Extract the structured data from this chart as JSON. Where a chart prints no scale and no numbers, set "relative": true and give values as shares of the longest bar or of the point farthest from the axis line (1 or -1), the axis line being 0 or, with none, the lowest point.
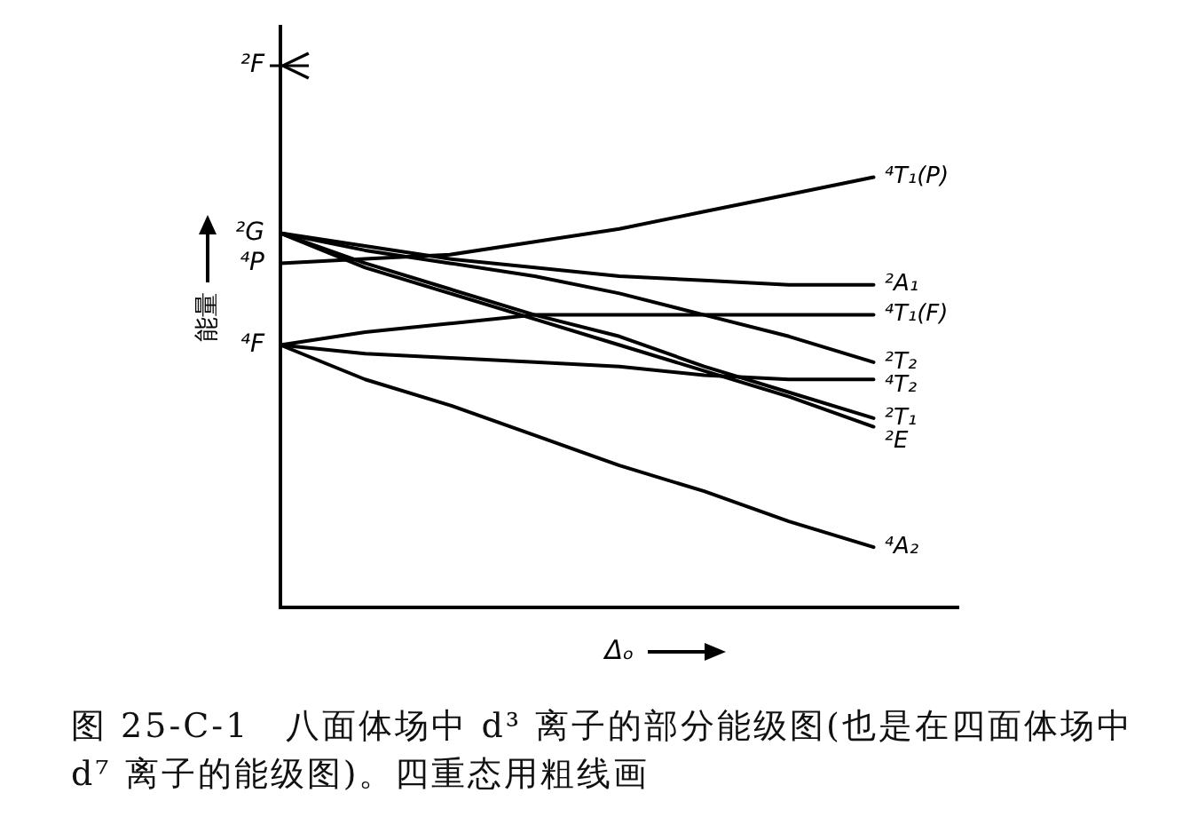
{
  "chart_data": {
    "type": "line",
    "title": "图 25-C-1　八面体场中 d³ 离子的部分能级图(也是在四面体场中 d⁷ 离子的能级图)。四重态用粗线画",
    "xlabel": "Δₒ",
    "ylabel": "能量",
    "marker": "none",
    "relative": true,
    "categories": [
      null,
      null,
      null,
      null,
      null,
      null,
      null,
      null,
      null
    ],
    "series": [
      {
        "name": "⁴T₁(P)",
        "color": "#000000",
        "values": [
          0.8,
          0.81,
          0.82,
          0.85,
          0.88,
          0.92,
          0.96,
          1,
          null
        ]
      },
      {
        "name": "²A₁",
        "color": "#000000",
        "values": [
          0.87,
          0.84,
          0.81,
          0.79,
          0.77,
          0.76,
          0.75,
          0.75,
          null
        ]
      },
      {
        "name": "⁴T₁(F)",
        "color": "#000000",
        "values": [
          0.61,
          0.64,
          0.66,
          0.68,
          0.68,
          0.68,
          0.68,
          0.68,
          null
        ]
      },
      {
        "name": "²T₂",
        "color": "#000000",
        "values": [
          0.87,
          0.83,
          0.8,
          0.77,
          0.73,
          0.68,
          0.63,
          0.57,
          null
        ]
      },
      {
        "name": "⁴T₂",
        "color": "#000000",
        "values": [
          0.61,
          0.59,
          0.58,
          0.57,
          0.56,
          0.54,
          0.53,
          0.53,
          null
        ]
      },
      {
        "name": "²T₁",
        "color": "#000000",
        "values": [
          0.87,
          0.8,
          0.74,
          0.68,
          0.63,
          0.56,
          0.5,
          0.44,
          null
        ]
      },
      {
        "name": "²E",
        "color": "#000000",
        "values": [
          0.87,
          0.79,
          0.73,
          0.67,
          0.61,
          0.55,
          0.49,
          0.42,
          null
        ]
      },
      {
        "name": "⁴A₂",
        "color": "#000000",
        "values": [
          0.61,
          0.53,
          0.47,
          0.4,
          0.33,
          0.27,
          0.2,
          0.14,
          null
        ]
      }
    ],
    "annotations": [
      "²F",
      "²G",
      "⁴P",
      "⁴F"
    ]
  }
}
